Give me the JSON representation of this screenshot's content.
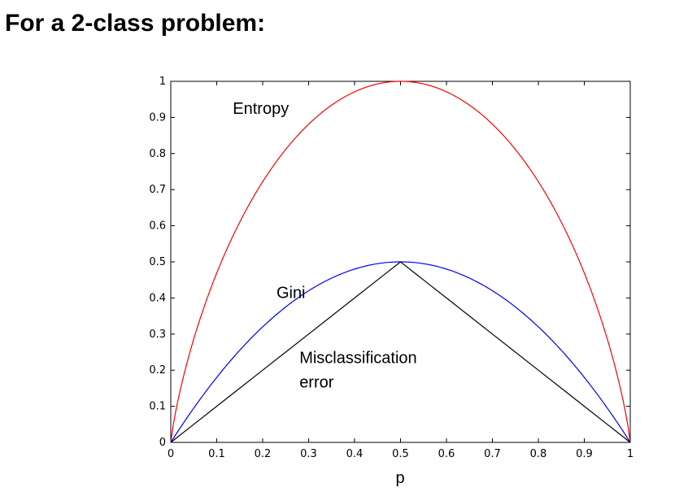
{
  "page": {
    "title": "For a 2-class problem:"
  },
  "chart_data": {
    "type": "line",
    "title": "",
    "xlabel": "p",
    "ylabel": "",
    "xlim": [
      0,
      1
    ],
    "ylim": [
      0,
      1
    ],
    "xticks": [
      "0",
      "0.1",
      "0.2",
      "0.3",
      "0.4",
      "0.5",
      "0.6",
      "0.7",
      "0.8",
      "0.9",
      "1"
    ],
    "yticks": [
      "0",
      "0.1",
      "0.2",
      "0.3",
      "0.4",
      "0.5",
      "0.6",
      "0.7",
      "0.8",
      "0.9",
      "1"
    ],
    "grid": false,
    "x": [
      0,
      0.05,
      0.1,
      0.15,
      0.2,
      0.25,
      0.3,
      0.35,
      0.4,
      0.45,
      0.5,
      0.55,
      0.6,
      0.65,
      0.7,
      0.75,
      0.8,
      0.85,
      0.9,
      0.95,
      1
    ],
    "series": [
      {
        "name": "Entropy",
        "color": "#ff0000",
        "values": [
          0,
          0.286,
          0.469,
          0.61,
          0.722,
          0.811,
          0.881,
          0.934,
          0.971,
          0.993,
          1.0,
          0.993,
          0.971,
          0.934,
          0.881,
          0.811,
          0.722,
          0.61,
          0.469,
          0.286,
          0
        ]
      },
      {
        "name": "Gini",
        "color": "#0000ff",
        "values": [
          0,
          0.095,
          0.18,
          0.255,
          0.32,
          0.375,
          0.42,
          0.455,
          0.48,
          0.495,
          0.5,
          0.495,
          0.48,
          0.455,
          0.42,
          0.375,
          0.32,
          0.255,
          0.18,
          0.095,
          0
        ]
      },
      {
        "name": "Misclassification error",
        "color": "#000000",
        "values": [
          0,
          0.05,
          0.1,
          0.15,
          0.2,
          0.25,
          0.3,
          0.35,
          0.4,
          0.45,
          0.5,
          0.45,
          0.4,
          0.35,
          0.3,
          0.25,
          0.2,
          0.15,
          0.1,
          0.05,
          0
        ]
      }
    ],
    "annotations": [
      {
        "lines": [
          "Entropy"
        ],
        "series": "Entropy",
        "x": 0.135,
        "y": 0.91
      },
      {
        "lines": [
          "Gini"
        ],
        "series": "Gini",
        "x": 0.23,
        "y": 0.4
      },
      {
        "lines": [
          "Misclassification",
          "error"
        ],
        "series": "Misclassification error",
        "x": 0.28,
        "y": 0.22
      }
    ]
  }
}
